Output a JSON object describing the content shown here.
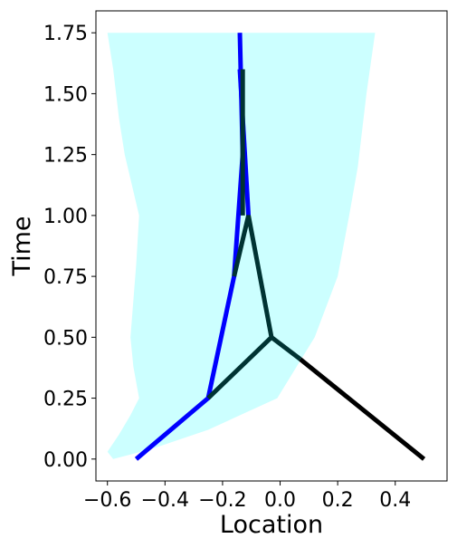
{
  "chart_data": {
    "type": "line",
    "xlabel": "Location",
    "ylabel": "Time",
    "xlim": [
      -0.64,
      0.58
    ],
    "ylim": [
      -0.09,
      1.84
    ],
    "xticks": [
      -0.6,
      -0.4,
      -0.2,
      0.0,
      0.2,
      0.4
    ],
    "xtick_labels": [
      "−0.6",
      "−0.4",
      "−0.2",
      "0.0",
      "0.2",
      "0.4"
    ],
    "yticks": [
      0.0,
      0.25,
      0.5,
      0.75,
      1.0,
      1.25,
      1.5,
      1.75
    ],
    "ytick_labels": [
      "0.00",
      "0.25",
      "0.50",
      "0.75",
      "1.00",
      "1.25",
      "1.50",
      "1.75"
    ],
    "grid": false,
    "region": {
      "color": "#ccffff",
      "left": [
        [
          -0.58,
          0.0
        ],
        [
          -0.6,
          0.03
        ],
        [
          -0.56,
          0.1
        ],
        [
          -0.52,
          0.18
        ],
        [
          -0.49,
          0.25
        ],
        [
          -0.51,
          0.38
        ],
        [
          -0.52,
          0.5
        ],
        [
          -0.51,
          0.65
        ],
        [
          -0.5,
          0.8
        ],
        [
          -0.49,
          1.0
        ],
        [
          -0.51,
          1.1
        ],
        [
          -0.54,
          1.25
        ],
        [
          -0.56,
          1.4
        ],
        [
          -0.58,
          1.6
        ],
        [
          -0.6,
          1.75
        ]
      ],
      "right": [
        [
          -0.58,
          0.0
        ],
        [
          -0.45,
          0.04
        ],
        [
          -0.25,
          0.12
        ],
        [
          -0.01,
          0.25
        ],
        [
          0.12,
          0.5
        ],
        [
          0.2,
          0.75
        ],
        [
          0.24,
          1.0
        ],
        [
          0.27,
          1.2
        ],
        [
          0.3,
          1.5
        ],
        [
          0.33,
          1.75
        ]
      ]
    },
    "series": [
      {
        "color": "#0000ff",
        "segments": [
          [
            [
              -0.5,
              0.0
            ],
            [
              -0.25,
              0.25
            ],
            [
              -0.16,
              0.75
            ],
            [
              -0.13,
              1.25
            ],
            [
              -0.14,
              1.75
            ]
          ],
          [
            [
              -0.11,
              1.0
            ],
            [
              -0.14,
              1.6
            ]
          ]
        ]
      },
      {
        "color": "#003333",
        "segments": [
          [
            [
              -0.25,
              0.25
            ],
            [
              -0.03,
              0.5
            ],
            [
              -0.11,
              1.0
            ],
            [
              -0.16,
              0.75
            ]
          ],
          [
            [
              -0.13,
              1.0
            ],
            [
              -0.13,
              1.6
            ]
          ],
          [
            [
              -0.03,
              0.5
            ],
            [
              0.07,
              0.41
            ]
          ]
        ]
      },
      {
        "color": "#000000",
        "segments": [
          [
            [
              0.07,
              0.41
            ],
            [
              0.5,
              0.0
            ]
          ]
        ]
      }
    ]
  }
}
